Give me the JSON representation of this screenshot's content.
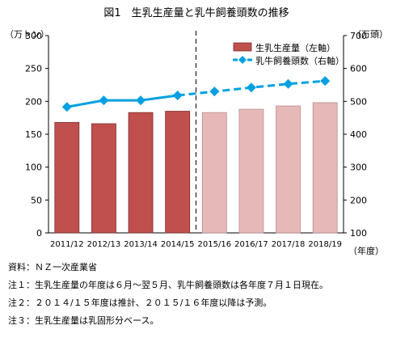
{
  "chart_data": {
    "type": "bar+line",
    "title": "図1　生乳生産量と乳牛飼養頭数の推移",
    "left_unit": "（万トン）",
    "right_unit": "（万頭）",
    "x_unit": "（年度）",
    "categories": [
      "2011/12",
      "2012/13",
      "2013/14",
      "2014/15",
      "2015/16",
      "2016/17",
      "2017/18",
      "2018/19"
    ],
    "left_axis": {
      "ylim": [
        0,
        300
      ],
      "ticks": [
        "0",
        "50",
        "100",
        "150",
        "200",
        "250",
        "300"
      ]
    },
    "right_axis": {
      "ylim": [
        100,
        700
      ],
      "ticks": [
        "100",
        "200",
        "300",
        "400",
        "500",
        "600",
        "700"
      ]
    },
    "series": [
      {
        "name": "生乳生産量（左軸）",
        "type": "bar",
        "axis": "left",
        "values": [
          168,
          166,
          183,
          185,
          183,
          188,
          193,
          198
        ],
        "projected_from_index": 4,
        "color": "#c0504d",
        "projected_color": "#e6b9b8"
      },
      {
        "name": "乳牛飼養頭数（右軸）",
        "type": "line",
        "axis": "right",
        "values": [
          483,
          503,
          503,
          518,
          530,
          542,
          553,
          562
        ],
        "projected_from_index": 4,
        "color": "#00a0e0",
        "marker": "diamond"
      }
    ],
    "projection_divider_after_index": 3,
    "grid": false,
    "legend_position": "top-right"
  },
  "notes": [
    "資料：ＮＺ一次産業省",
    "注１：生乳生産量の年度は６月～翌５月、乳牛飼養頭数は各年度７月１日現在。",
    "注２：２０１４/１５年度は推計、２０１５/１６年度以降は予測。",
    "注３：生乳生産量は乳固形分ベース。"
  ]
}
